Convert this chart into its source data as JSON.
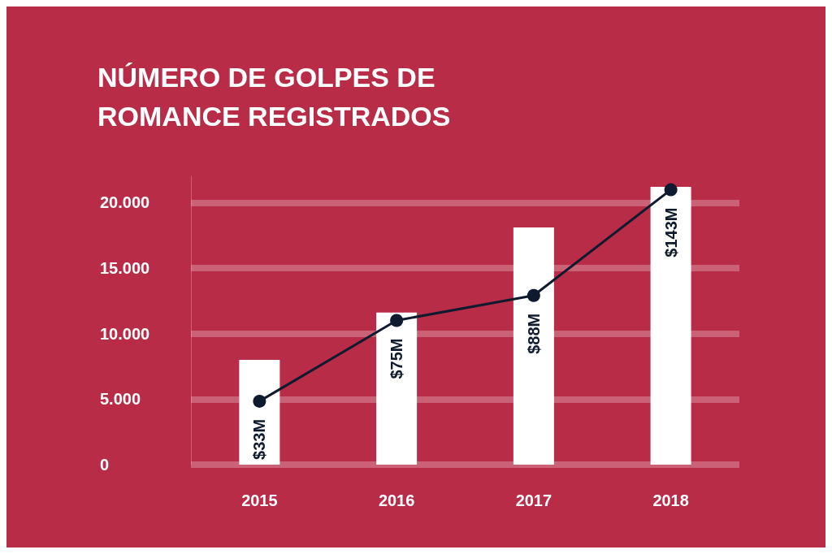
{
  "chart_data": {
    "type": "bar",
    "title": "NÚMERO DE GOLPES DE\nROMANCE REGISTRADOS",
    "categories": [
      "2015",
      "2016",
      "2017",
      "2018"
    ],
    "series": [
      {
        "color": "#ffffff",
        "values": [
          8000,
          11600,
          18100,
          21200
        ]
      },
      {
        "type": "line",
        "axis": "y2",
        "color": "#0f1a2e",
        "values": [
          33,
          75,
          88,
          143
        ],
        "value_labels": [
          "$33M",
          "$75M",
          "$88M",
          "$143M"
        ]
      }
    ],
    "ylim": [
      0,
      22000
    ],
    "yticks": [
      {
        "value": 0,
        "label": "0"
      },
      {
        "value": 5000,
        "label": "5.000"
      },
      {
        "value": 10000,
        "label": "10.000"
      },
      {
        "value": 15000,
        "label": "15.000"
      },
      {
        "value": 20000,
        "label": "20.000"
      }
    ],
    "grid": "y",
    "marker": "circle",
    "line_style": "solid"
  }
}
